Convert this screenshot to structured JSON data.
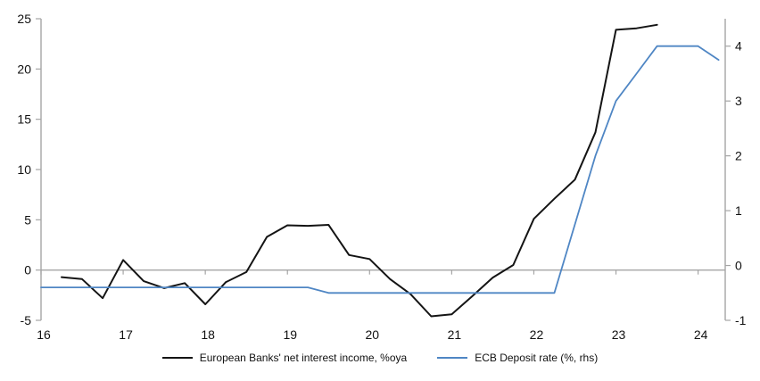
{
  "chart": {
    "legend": [
      {
        "label": "European Banks' net interest income, %oya",
        "color": "#141414"
      },
      {
        "label": "ECB Deposit rate (%, rhs)",
        "color": "#4f86c4"
      }
    ]
  },
  "chart_data": {
    "type": "line",
    "title": "",
    "xlabel": "",
    "ylabel_left": "",
    "ylabel_right": "",
    "grid": "zero-line-only",
    "legend_position": "bottom",
    "x_axis": {
      "range": [
        16,
        24.33
      ],
      "ticks": [
        16,
        17,
        18,
        19,
        20,
        21,
        22,
        23,
        24
      ],
      "tick_labels": [
        "16",
        "17",
        "18",
        "19",
        "20",
        "21",
        "22",
        "23",
        "24"
      ]
    },
    "left_axis": {
      "range": [
        -5,
        25
      ],
      "ticks": [
        -5,
        0,
        5,
        10,
        15,
        20,
        25
      ],
      "tick_labels": [
        "-5",
        "0",
        "5",
        "10",
        "15",
        "20",
        "25"
      ]
    },
    "right_axis": {
      "range": [
        -1,
        4.5
      ],
      "ticks": [
        -1,
        0,
        1,
        2,
        3,
        4
      ],
      "tick_labels": [
        "-1",
        "0",
        "1",
        "2",
        "3",
        "4"
      ]
    },
    "series": [
      {
        "name": "European Banks' net interest income, %oya",
        "axis": "left",
        "color": "#141414",
        "stroke_width": 2,
        "x": [
          16.25,
          16.5,
          16.75,
          17,
          17.25,
          17.5,
          17.75,
          18,
          18.25,
          18.5,
          18.75,
          19,
          19.25,
          19.5,
          19.75,
          20,
          20.25,
          20.5,
          20.75,
          21,
          21.25,
          21.5,
          21.75,
          22,
          22.25,
          22.5,
          22.75,
          23,
          23.25,
          23.5
        ],
        "values": [
          -0.7,
          -0.9,
          -2.8,
          1.0,
          -1.1,
          -1.8,
          -1.3,
          -3.4,
          -1.2,
          -0.2,
          3.3,
          4.45,
          4.4,
          4.5,
          1.5,
          1.1,
          -0.9,
          -2.4,
          -4.6,
          -4.4,
          -2.6,
          -0.75,
          0.5,
          5.1,
          7.1,
          9.0,
          13.7,
          23.9,
          24.05,
          24.4
        ]
      },
      {
        "name": "ECB Deposit rate (%, rhs)",
        "axis": "right",
        "color": "#4f86c4",
        "stroke_width": 1.8,
        "x": [
          16,
          16.25,
          16.5,
          16.75,
          17,
          17.25,
          17.5,
          17.75,
          18,
          18.25,
          18.5,
          18.75,
          19,
          19.25,
          19.5,
          19.75,
          20,
          20.25,
          20.5,
          20.75,
          21,
          21.25,
          21.5,
          21.75,
          22,
          22.25,
          22.5,
          22.75,
          23,
          23.25,
          23.5,
          23.75,
          24,
          24.25
        ],
        "values": [
          -0.4,
          -0.4,
          -0.4,
          -0.4,
          -0.4,
          -0.4,
          -0.4,
          -0.4,
          -0.4,
          -0.4,
          -0.4,
          -0.4,
          -0.4,
          -0.4,
          -0.5,
          -0.5,
          -0.5,
          -0.5,
          -0.5,
          -0.5,
          -0.5,
          -0.5,
          -0.5,
          -0.5,
          -0.5,
          -0.5,
          0.75,
          2.0,
          3.0,
          3.5,
          4.0,
          4.0,
          4.0,
          3.75
        ]
      }
    ],
    "style": {
      "axis_color": "#a5a5a5",
      "text_color": "#111111",
      "background": "#ffffff"
    }
  }
}
